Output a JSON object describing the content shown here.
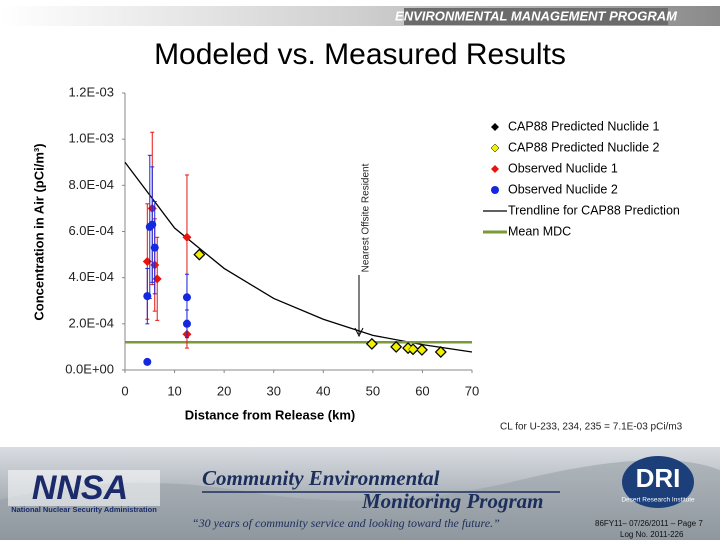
{
  "header": {
    "program": "ENVIRONMENTAL MANAGEMENT PROGRAM"
  },
  "title": "Modeled vs. Measured Results",
  "chart_data": {
    "type": "scatter",
    "xlabel": "Distance from Release (km)",
    "ylabel": "Concentration in Air (pCi/m³)",
    "annotation": "Nearest Offsite Resident",
    "xlim": [
      0,
      70
    ],
    "xticks": [
      0,
      10,
      20,
      30,
      40,
      50,
      60,
      70
    ],
    "ylim": [
      0,
      0.0012
    ],
    "yticks": [
      {
        "value": 0,
        "label": "0.0E+00"
      },
      {
        "value": 0.0002,
        "label": "2.0E-04"
      },
      {
        "value": 0.0004,
        "label": "4.0E-04"
      },
      {
        "value": 0.0006,
        "label": "6.0E-04"
      },
      {
        "value": 0.0008,
        "label": "8.0E-04"
      },
      {
        "value": 0.001,
        "label": "1.0E-03"
      },
      {
        "value": 0.0012,
        "label": "1.2E-03"
      }
    ],
    "legend": "upper right",
    "series": [
      {
        "name": "CAP88 Predicted Nuclide 1",
        "color": "#000000",
        "marker": "diamond",
        "x": [
          15,
          49.8,
          54.7,
          57.1,
          58.1,
          59.9,
          63.7
        ],
        "values": [
          0.0005,
          0.000113,
          0.0001,
          9.5e-05,
          9e-05,
          8.7e-05,
          7.8e-05
        ]
      },
      {
        "name": "CAP88 Predicted Nuclide 2",
        "color": "#f0f000",
        "marker": "diamond",
        "x": [
          15,
          49.8,
          54.7,
          57.1,
          58.1,
          59.9,
          63.7
        ],
        "values": [
          0.0005,
          0.000113,
          0.0001,
          9.5e-05,
          9e-05,
          8.7e-05,
          7.8e-05
        ]
      },
      {
        "name": "Observed Nuclide 1",
        "color": "#e8140f",
        "marker": "diamond",
        "x": [
          4.5,
          5.5,
          6,
          6.5,
          12.5,
          12.5
        ],
        "values": [
          0.00047,
          0.0007,
          0.000455,
          0.000395,
          0.000575,
          0.000155
        ],
        "errors": [
          0.00025,
          0.00033,
          0.0002,
          0.00018,
          0.00027,
          6e-05
        ]
      },
      {
        "name": "Observed Nuclide 2",
        "color": "#1428e0",
        "marker": "circle",
        "x": [
          4.5,
          4.5,
          5,
          5.5,
          6,
          12.5,
          12.5
        ],
        "values": [
          3.5e-05,
          0.00032,
          0.00062,
          0.00063,
          0.00053,
          0.000315,
          0.0002
        ],
        "errors": [
          1e-05,
          0.00012,
          0.00031,
          0.00025,
          0.0002,
          0.0001,
          6e-05
        ]
      },
      {
        "name": "Trendline for CAP88 Prediction",
        "color": "#000000",
        "marker": "line",
        "x": [
          0,
          10,
          20,
          30,
          40,
          50,
          60,
          70
        ],
        "values": [
          0.0009,
          0.000615,
          0.00044,
          0.00031,
          0.00022,
          0.00015,
          0.00011,
          7.8e-05
        ]
      },
      {
        "name": "Mean MDC",
        "color": "#7a9a3a",
        "marker": "line",
        "x": [
          0,
          70
        ],
        "values": [
          0.00012,
          0.00012
        ]
      }
    ]
  },
  "note": "CL for U-233, 234, 235 = 7.1E-03 pCi/m3",
  "footer": {
    "nnsa": "NNSA",
    "nnsa_name": "National Nuclear Security Administration",
    "program_line1": "Community Environmental",
    "program_line2": "Monitoring Program",
    "tagline": "“30 years of community service and looking toward the future.”",
    "dri": "DRI",
    "dri_name": "Desert Research Institute",
    "page": "86FY11– 07/26/2011 – Page 7",
    "log": "Log No. 2011-226"
  }
}
